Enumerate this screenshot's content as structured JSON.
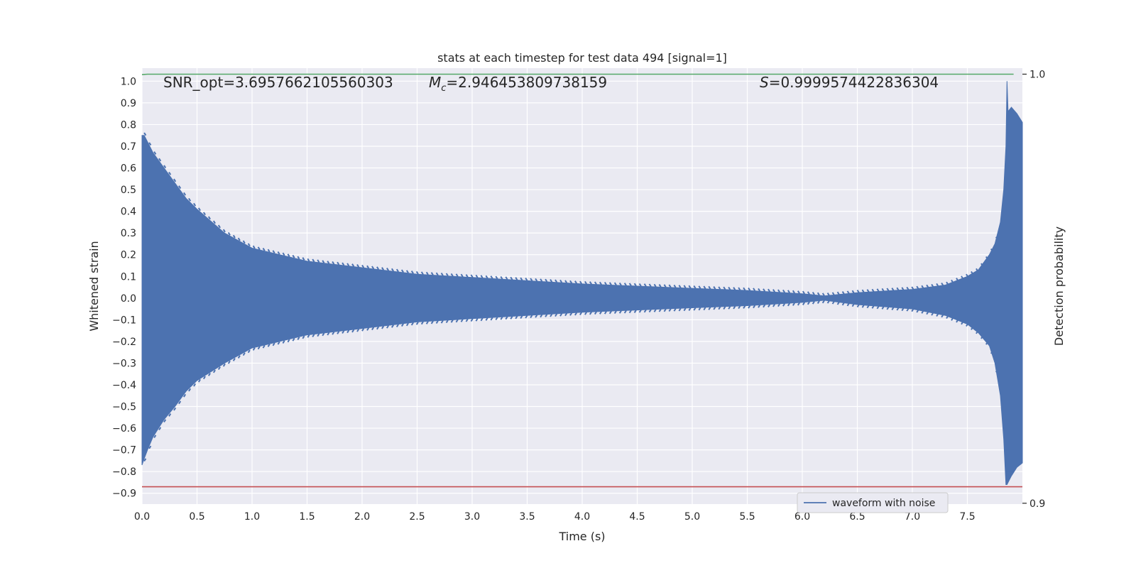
{
  "chart_data": {
    "type": "line",
    "title": "stats at each timestep for test data 494 [signal=1]",
    "xlabel": "Time (s)",
    "ylabel": "Whitened strain",
    "ylabel_right": "Detection probability",
    "xlim": [
      0.0,
      8.0
    ],
    "ylim": [
      -0.95,
      1.06
    ],
    "ylim_right": [
      0.8998,
      1.0014
    ],
    "x_ticks": [
      "0.0",
      "0.5",
      "1.0",
      "1.5",
      "2.0",
      "2.5",
      "3.0",
      "3.5",
      "4.0",
      "4.5",
      "5.0",
      "5.5",
      "6.0",
      "6.5",
      "7.0",
      "7.5"
    ],
    "x_tick_values": [
      0.0,
      0.5,
      1.0,
      1.5,
      2.0,
      2.5,
      3.0,
      3.5,
      4.0,
      4.5,
      5.0,
      5.5,
      6.0,
      6.5,
      7.0,
      7.5
    ],
    "y_ticks": [
      "1.0",
      "0.9",
      "0.8",
      "0.7",
      "0.6",
      "0.5",
      "0.4",
      "0.3",
      "0.2",
      "0.1",
      "0.0",
      "−0.1",
      "−0.2",
      "−0.3",
      "−0.4",
      "−0.5",
      "−0.6",
      "−0.7",
      "−0.8",
      "−0.9"
    ],
    "y_tick_values": [
      1.0,
      0.9,
      0.8,
      0.7,
      0.6,
      0.5,
      0.4,
      0.3,
      0.2,
      0.1,
      0.0,
      -0.1,
      -0.2,
      -0.3,
      -0.4,
      -0.5,
      -0.6,
      -0.7,
      -0.8,
      -0.9
    ],
    "y_ticks_right": [
      "1.0",
      "0.9"
    ],
    "y_tick_values_right": [
      1.0,
      0.9
    ],
    "grid": true,
    "legend": "bottom-right",
    "annotations": {
      "snr": "SNR_opt=3.6957662105560303",
      "mc_symbol": "M",
      "mc_sub": "c",
      "mc_value": "=2.946453809738159",
      "s_symbol": "S",
      "s_value": "=0.9999574422836304"
    },
    "series": [
      {
        "name": "waveform with noise",
        "color": "#4c72b0",
        "envelope": {
          "x": [
            0.0,
            0.02,
            0.05,
            0.1,
            0.2,
            0.3,
            0.4,
            0.5,
            0.75,
            1.0,
            1.25,
            1.5,
            2.0,
            2.5,
            3.0,
            3.5,
            4.0,
            4.5,
            5.0,
            5.5,
            6.0,
            6.2,
            6.5,
            7.0,
            7.3,
            7.5,
            7.6,
            7.7,
            7.75,
            7.8,
            7.83,
            7.85,
            7.86,
            7.87,
            7.9,
            7.95,
            8.0
          ],
          "upper": [
            0.75,
            0.75,
            0.72,
            0.67,
            0.6,
            0.53,
            0.46,
            0.41,
            0.3,
            0.23,
            0.2,
            0.17,
            0.14,
            0.11,
            0.095,
            0.08,
            0.065,
            0.055,
            0.045,
            0.035,
            0.02,
            0.01,
            0.025,
            0.04,
            0.06,
            0.1,
            0.13,
            0.2,
            0.25,
            0.35,
            0.5,
            0.7,
            1.0,
            0.86,
            0.88,
            0.85,
            0.81
          ],
          "lower": [
            -0.77,
            -0.74,
            -0.7,
            -0.64,
            -0.56,
            -0.5,
            -0.43,
            -0.38,
            -0.3,
            -0.23,
            -0.2,
            -0.17,
            -0.14,
            -0.11,
            -0.095,
            -0.08,
            -0.065,
            -0.055,
            -0.045,
            -0.035,
            -0.02,
            -0.01,
            -0.03,
            -0.05,
            -0.08,
            -0.12,
            -0.16,
            -0.22,
            -0.3,
            -0.45,
            -0.65,
            -0.86,
            -0.86,
            -0.85,
            -0.82,
            -0.78,
            -0.76
          ]
        }
      },
      {
        "name": "",
        "axis": "right",
        "color": "#55a868",
        "x": [
          0.0,
          0.05,
          0.1,
          7.92
        ],
        "y": [
          0.9999,
          1.0,
          1.0,
          1.0
        ]
      },
      {
        "name": "",
        "axis": "left",
        "color": "#c44e52",
        "x": [
          0.0,
          8.0
        ],
        "y": [
          -0.87,
          -0.87
        ]
      }
    ]
  }
}
